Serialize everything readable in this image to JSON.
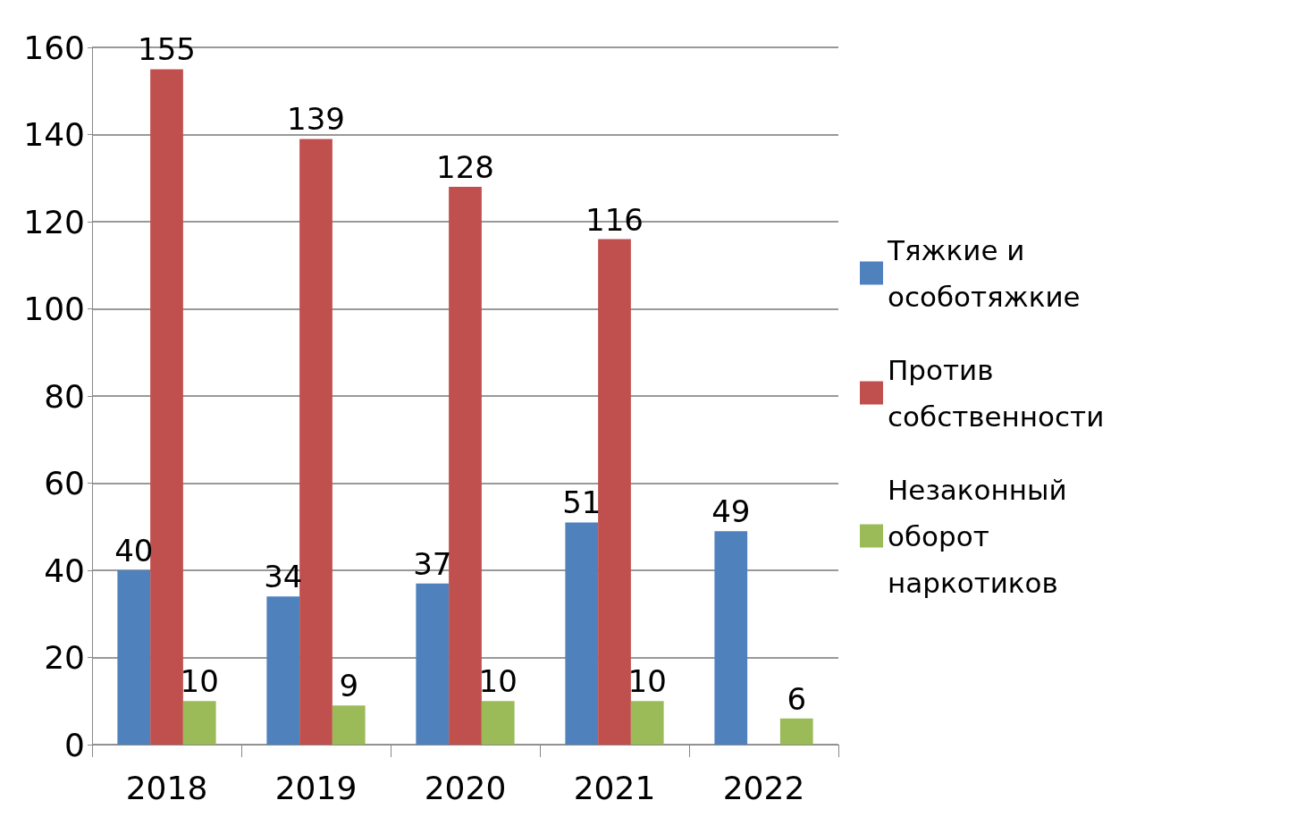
{
  "chart_data": {
    "type": "bar",
    "categories": [
      "2018",
      "2019",
      "2020",
      "2021",
      "2022"
    ],
    "series": [
      {
        "name": "Тяжкие и особотяжкие",
        "color": "#4f81bd",
        "values": [
          40,
          34,
          37,
          51,
          49
        ]
      },
      {
        "name": "Против собственности",
        "color": "#c0504d",
        "values": [
          155,
          139,
          128,
          116,
          null
        ]
      },
      {
        "name": "Незаконный оборот наркотиков",
        "color": "#9bbb59",
        "values": [
          10,
          9,
          10,
          10,
          6
        ]
      }
    ],
    "ylim": [
      0,
      160
    ],
    "yticks": [
      0,
      20,
      40,
      60,
      80,
      100,
      120,
      140,
      160
    ],
    "grid": "y",
    "legend": "right",
    "data_labels": true
  }
}
